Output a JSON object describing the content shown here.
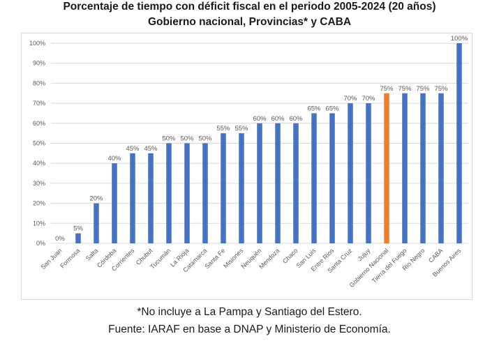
{
  "chart_data": {
    "type": "bar",
    "title": "Porcentaje de tiempo con déficit fiscal en el periodo 2005-2024 (20 años)",
    "subtitle": "Gobierno nacional, Provincias* y CABA",
    "xlabel": "",
    "ylabel": "",
    "ylim": [
      0,
      100
    ],
    "grid": true,
    "yticks": [
      "0%",
      "10%",
      "20%",
      "30%",
      "40%",
      "50%",
      "60%",
      "70%",
      "80%",
      "90%",
      "100%"
    ],
    "categories": [
      "San Juan",
      "Formosa",
      "Salta",
      "Córdoba",
      "Corrientes",
      "Chubut",
      "Tucumán",
      "La Rioja",
      "Catamarca",
      "Santa Fe",
      "Misiones",
      "Neuquén",
      "Mendoza",
      "Chaco",
      "San Luis",
      "Entre Rios",
      "Santa Cruz",
      "Jujuy",
      "Gobierno Nacional",
      "Tierra del Fuego",
      "Rio Negro",
      "CABA",
      "Buenos Aires"
    ],
    "values": [
      0,
      5,
      20,
      40,
      45,
      45,
      50,
      50,
      50,
      55,
      55,
      60,
      60,
      60,
      65,
      65,
      70,
      70,
      75,
      75,
      75,
      75,
      100
    ],
    "data_labels": [
      "0%",
      "5%",
      "20%",
      "40%",
      "45%",
      "45%",
      "50%",
      "50%",
      "50%",
      "55%",
      "55%",
      "60%",
      "60%",
      "60%",
      "65%",
      "65%",
      "70%",
      "70%",
      "75%",
      "75%",
      "75%",
      "75%",
      "100%"
    ],
    "highlight_category": "Gobierno Nacional",
    "colors": {
      "bar": "#4472c4",
      "highlight": "#ed7d31",
      "grid": "#d9d9d9",
      "text": "#595959"
    }
  },
  "footnotes": {
    "note": "*No incluye a La Pampa y Santiago del Estero.",
    "source": "Fuente: IARAF en base a DNAP y Ministerio de Economía."
  }
}
